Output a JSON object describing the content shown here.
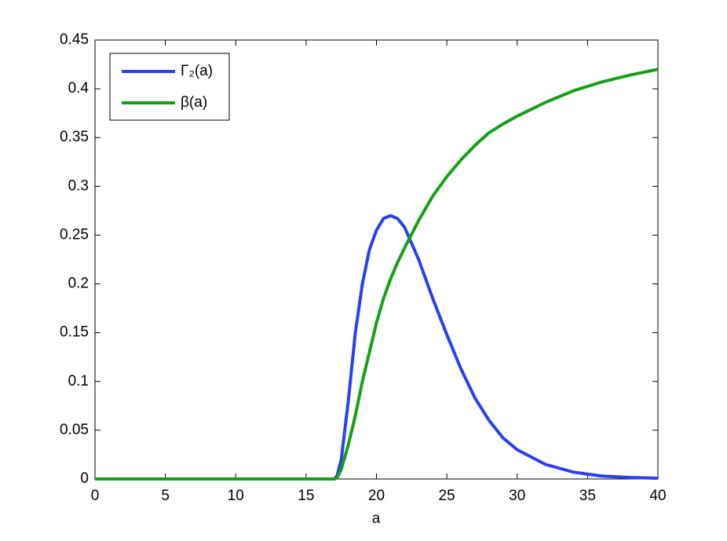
{
  "chart_data": {
    "type": "line",
    "xlabel": "a",
    "x": [
      0,
      5,
      10,
      15,
      17,
      17.2,
      17.5,
      18,
      18.5,
      19,
      19.5,
      20,
      20.5,
      21,
      21.5,
      22,
      23,
      24,
      25,
      26,
      27,
      28,
      29,
      30,
      32,
      34,
      36,
      38,
      40
    ],
    "series": [
      {
        "name": "Γ₂(a)",
        "color": "#2a3ff0",
        "values": [
          0,
          0,
          0,
          0,
          0,
          0.003,
          0.02,
          0.08,
          0.15,
          0.2,
          0.235,
          0.255,
          0.267,
          0.27,
          0.267,
          0.258,
          0.225,
          0.185,
          0.148,
          0.113,
          0.083,
          0.06,
          0.042,
          0.03,
          0.015,
          0.007,
          0.003,
          0.0015,
          0.0008
        ]
      },
      {
        "name": "β(a)",
        "color": "#16a016",
        "values": [
          0,
          0,
          0,
          0,
          0,
          0.001,
          0.01,
          0.035,
          0.065,
          0.1,
          0.13,
          0.16,
          0.185,
          0.205,
          0.222,
          0.237,
          0.265,
          0.29,
          0.31,
          0.327,
          0.342,
          0.355,
          0.364,
          0.372,
          0.386,
          0.398,
          0.407,
          0.414,
          0.42
        ]
      }
    ],
    "xlim": [
      0,
      40
    ],
    "xticks": [
      0,
      5,
      10,
      15,
      20,
      25,
      30,
      35,
      40
    ],
    "ylim": [
      0,
      0.45
    ],
    "yticks": [
      0,
      0.05,
      0.1,
      0.15,
      0.2,
      0.25,
      0.3,
      0.35,
      0.4,
      0.45
    ],
    "legend": "upper-left"
  }
}
